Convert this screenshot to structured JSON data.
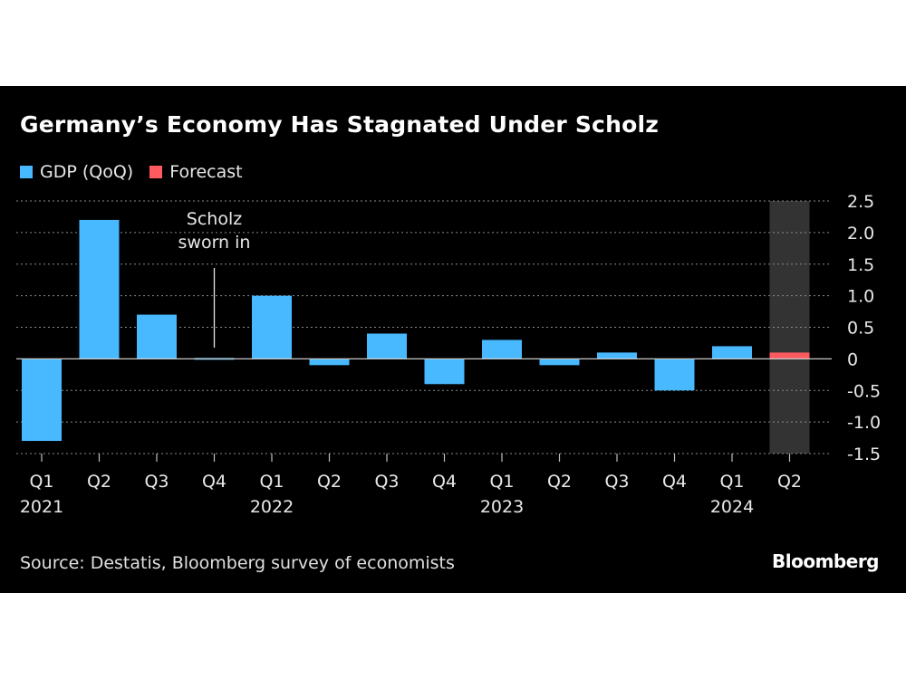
{
  "header": {
    "title": "Germany’s Economy Has Stagnated Under Scholz"
  },
  "legend": {
    "items": [
      {
        "label": "GDP (QoQ)",
        "color": "#48b8ff"
      },
      {
        "label": "Forecast",
        "color": "#ff5a5f"
      }
    ]
  },
  "footer": {
    "source": "Source: Destatis, Bloomberg survey of economists",
    "brand": "Bloomberg"
  },
  "chart_data": {
    "type": "bar",
    "categories": [
      "Q1 2021",
      "Q2 2021",
      "Q3 2021",
      "Q4 2021",
      "Q1 2022",
      "Q2 2022",
      "Q3 2022",
      "Q4 2022",
      "Q1 2023",
      "Q2 2023",
      "Q3 2023",
      "Q4 2023",
      "Q1 2024",
      "Q2 2024"
    ],
    "x_tick_labels": [
      {
        "quarter": "Q1",
        "year": "2021"
      },
      {
        "quarter": "Q2",
        "year": ""
      },
      {
        "quarter": "Q3",
        "year": ""
      },
      {
        "quarter": "Q4",
        "year": ""
      },
      {
        "quarter": "Q1",
        "year": "2022"
      },
      {
        "quarter": "Q2",
        "year": ""
      },
      {
        "quarter": "Q3",
        "year": ""
      },
      {
        "quarter": "Q4",
        "year": ""
      },
      {
        "quarter": "Q1",
        "year": "2023"
      },
      {
        "quarter": "Q2",
        "year": ""
      },
      {
        "quarter": "Q3",
        "year": ""
      },
      {
        "quarter": "Q4",
        "year": ""
      },
      {
        "quarter": "Q1",
        "year": "2024"
      },
      {
        "quarter": "Q2",
        "year": ""
      }
    ],
    "series": [
      {
        "name": "GDP (QoQ)",
        "color": "#48b8ff",
        "values": [
          -1.3,
          2.2,
          0.7,
          0.0,
          1.0,
          -0.1,
          0.4,
          -0.4,
          0.3,
          -0.1,
          0.1,
          -0.5,
          0.2,
          null
        ]
      },
      {
        "name": "Forecast",
        "color": "#ff5a5f",
        "values": [
          null,
          null,
          null,
          null,
          null,
          null,
          null,
          null,
          null,
          null,
          null,
          null,
          null,
          0.1
        ]
      }
    ],
    "y_ticks": [
      {
        "value": 2.5,
        "label": "2.5"
      },
      {
        "value": 2.0,
        "label": "2.0"
      },
      {
        "value": 1.5,
        "label": "1.5"
      },
      {
        "value": 1.0,
        "label": "1.0"
      },
      {
        "value": 0.5,
        "label": "0.5"
      },
      {
        "value": 0.0,
        "label": "0"
      },
      {
        "value": -0.5,
        "label": "-0.5"
      },
      {
        "value": -1.0,
        "label": "-1.0"
      },
      {
        "value": -1.5,
        "label": "-1.5"
      }
    ],
    "ylim": [
      -1.5,
      2.5
    ],
    "y_axis_side": "right",
    "grid": true,
    "legend_position": "top-left",
    "forecast_shading": {
      "category_index": 13,
      "color": "#333333"
    },
    "annotation": {
      "lines": [
        "Scholz",
        "sworn in"
      ],
      "category_index": 3
    }
  }
}
